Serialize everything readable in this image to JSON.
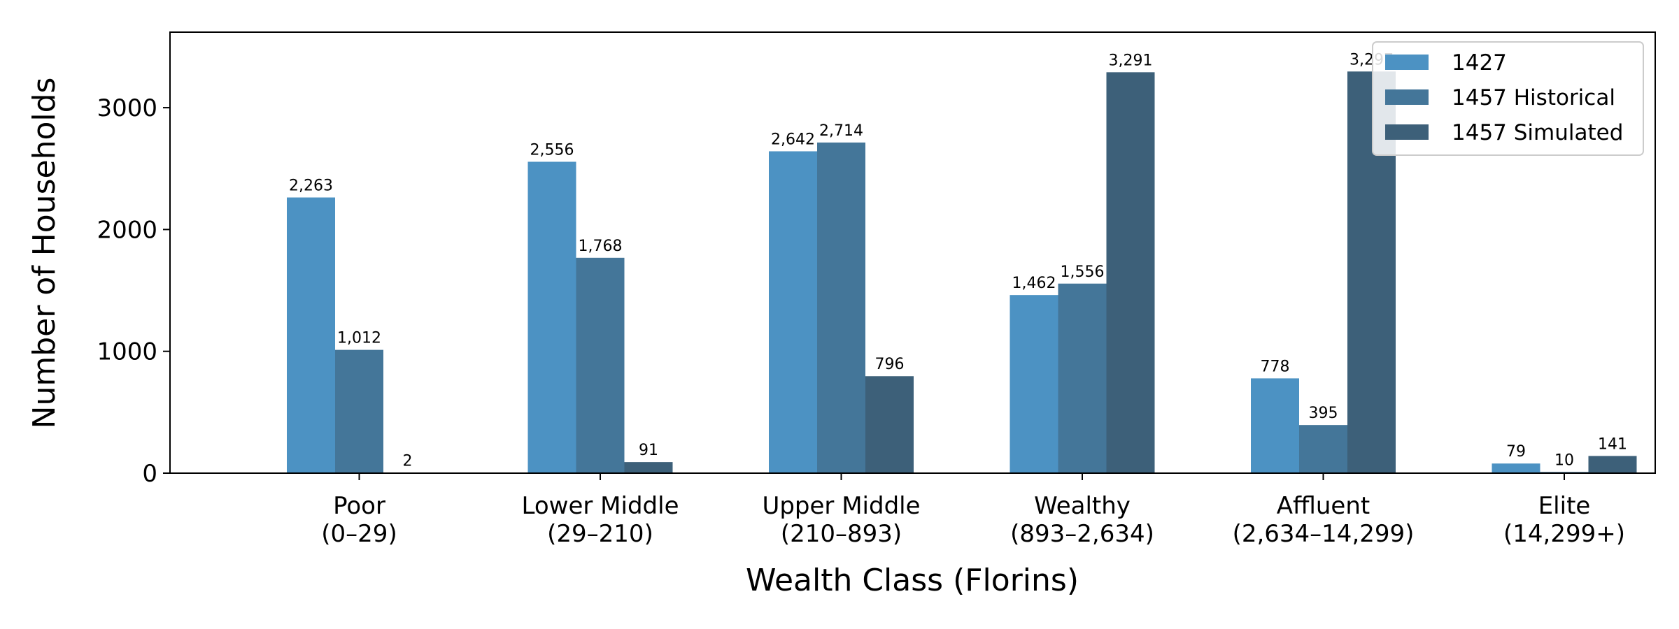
{
  "chart_data": {
    "type": "bar",
    "xlabel": "Wealth Class (Florins)",
    "ylabel": "Number of Households",
    "categories": [
      [
        "Poor",
        "(0–29)"
      ],
      [
        "Lower Middle",
        "(29–210)"
      ],
      [
        "Upper Middle",
        "(210–893)"
      ],
      [
        "Wealthy",
        "(893–2,634)"
      ],
      [
        "Affluent",
        "(2,634–14,299)"
      ],
      [
        "Elite",
        "(14,299+)"
      ]
    ],
    "series": [
      {
        "name": "1427",
        "color": "#4c92c3",
        "values": [
          2263,
          2556,
          2642,
          1462,
          778,
          79
        ],
        "labels": [
          "2,263",
          "2,556",
          "2,642",
          "1,462",
          "778",
          "79"
        ]
      },
      {
        "name": "1457 Historical",
        "color": "#447699",
        "values": [
          1012,
          1768,
          2714,
          1556,
          395,
          10
        ],
        "labels": [
          "1,012",
          "1,768",
          "2,714",
          "1,556",
          "395",
          "10"
        ]
      },
      {
        "name": "1457 Simulated",
        "color": "#3d6079",
        "values": [
          2,
          91,
          796,
          3291,
          3297,
          141
        ],
        "labels": [
          "2",
          "91",
          "796",
          "3,291",
          "3,297",
          "141"
        ]
      }
    ],
    "ylim": [
      0,
      3620
    ],
    "yticks": [
      0,
      1000,
      2000,
      3000
    ],
    "grid": false,
    "legend_position": "top-right"
  }
}
